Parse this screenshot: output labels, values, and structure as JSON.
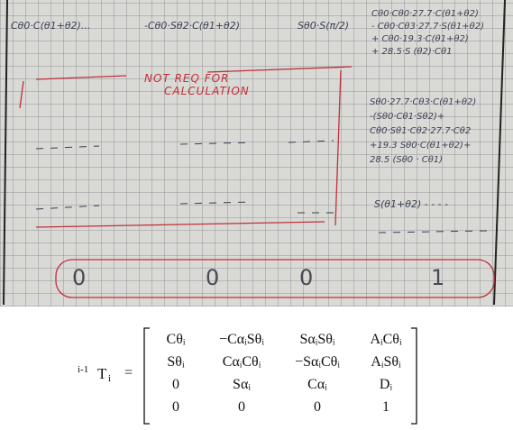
{
  "handwritten_notes": {
    "top_row": [
      "Cθ0·C(θ1+θ2)...",
      "-Cθ0·Sθ2·C(θ1+θ2)",
      "Sθ0·S(π/2)"
    ],
    "note_block_1": [
      "Cθ0·Cθ0·27.7·C(θ1+θ2)",
      "- Cθ0·Cθ3·27.7·S(θ1+θ2)",
      "+ Cθ0·19.3·C(θ1+θ2)",
      "+ 28.5·S (θ2)·Cθ1"
    ],
    "red_note": [
      "NOT REQ FOR",
      "CALCULATION"
    ],
    "note_block_2": [
      "Sθ0·27.7·Cθ3·C(θ1+θ2)",
      "-(Sθ0·Cθ1·Sθ2)+",
      "Cθ0·Sθ1·Cθ2·27.7·Cθ2",
      "+19.3 Sθ0·C(θ1+θ2)+",
      "28.5 (Sθ0 · Cθ1)"
    ],
    "note_block_3": "S(θ1+θ2) - - - -",
    "bottom_row": [
      "0",
      "0",
      "0",
      "1"
    ]
  },
  "formula": {
    "superscript": "i-1",
    "symbol": "T",
    "subscript": "i",
    "equals": "=",
    "matrix": [
      [
        "Cθᵢ",
        "−CαᵢSθᵢ",
        "SαᵢSθᵢ",
        "AᵢCθᵢ"
      ],
      [
        "Sθᵢ",
        "CαᵢCθᵢ",
        "−SαᵢCθᵢ",
        "AᵢSθᵢ"
      ],
      [
        "0",
        "Sαᵢ",
        "Cαᵢ",
        "Dᵢ"
      ],
      [
        "0",
        "0",
        "0",
        "1"
      ]
    ]
  }
}
